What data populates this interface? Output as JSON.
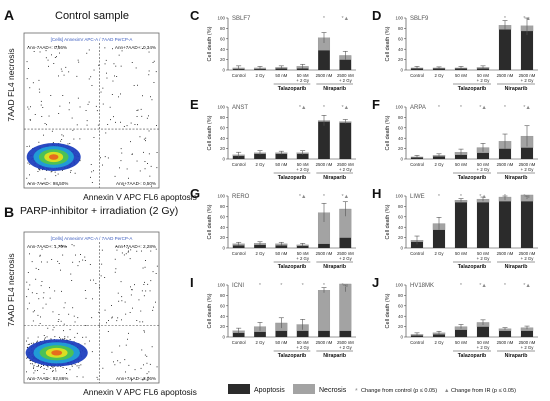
{
  "colors": {
    "apoptosis": "#2b2b2b",
    "necrosis": "#a3a3a3",
    "axis": "#333333",
    "flow_gate": "#3a5bbf",
    "marker": "#8a8a8a"
  },
  "flow_panels": [
    {
      "letter": "A",
      "title": "Control sample",
      "header": "[Cells] AnnexinV APC-A / 7AAD PerCP-A",
      "ylabel": "7AAD FL4 necrosis",
      "xlabel": "Annexin V APC FL6 apoptosis",
      "quadrants": [
        "Ann-7AAD+: 0,66%",
        "Ann+7AAD+: 0,34%",
        "Ann-7AAD-: 98,50%",
        "Ann+7AAD-: 0,50%"
      ],
      "density": "control"
    },
    {
      "letter": "B",
      "title": "PARP-inhibitor + irradiation (2 Gy)",
      "header": "[Cells] AnnexinV APC-A / 7AAD PerCP-A",
      "ylabel": "7AAD FL4 necrosis",
      "xlabel": "Annexin V APC FL6 apoptosis",
      "quadrants": [
        "Ann-7AAD+: 1,79%",
        "Ann+7AAD+: 2,28%",
        "Ann-7AAD-: 92,86%",
        "Ann+7AAD-: 3,06%"
      ],
      "density": "treated"
    }
  ],
  "chart_data": {
    "type": "bar",
    "stacked": true,
    "categories": [
      "Control",
      "2 Gy",
      "50 nM",
      "50 nM + 2 Gy",
      "2500 nM",
      "2500 nM + 2 Gy"
    ],
    "category_lines": [
      [
        "Control"
      ],
      [
        "2 Gy"
      ],
      [
        "50 nM"
      ],
      [
        "50 nM",
        "+ 2 Gy"
      ],
      [
        "2500 nM"
      ],
      [
        "2500 nM",
        "+ 2 Gy"
      ]
    ],
    "groups": [
      {
        "label": "Talazoparib",
        "from": 2,
        "to": 3
      },
      {
        "label": "Niraparib",
        "from": 4,
        "to": 5
      }
    ],
    "ylabel": "Cell death (%)",
    "ylim": [
      0,
      100
    ],
    "yticks": [
      0,
      20,
      40,
      60,
      80,
      100
    ],
    "legend": {
      "apoptosis": "Apoptosis",
      "necrosis": "Necrosis",
      "star_note": "Change from control (p ≤ 0.05)",
      "tri_note": "Change from IR (p ≤ 0.05)"
    },
    "panels": [
      {
        "letter": "C",
        "name": "SBLF7",
        "apoptosis": [
          2,
          2,
          3,
          3,
          38,
          20
        ],
        "necrosis": [
          2,
          2,
          2,
          4,
          24,
          8
        ],
        "error": [
          4,
          3,
          3,
          4,
          10,
          8
        ],
        "marks": [
          "",
          "",
          "",
          "",
          "*",
          "*▲"
        ]
      },
      {
        "letter": "D",
        "name": "SBLF9",
        "apoptosis": [
          3,
          3,
          3,
          3,
          78,
          75
        ],
        "necrosis": [
          1,
          1,
          1,
          2,
          8,
          10
        ],
        "error": [
          3,
          2,
          3,
          3,
          9,
          18
        ],
        "marks": [
          "",
          "",
          "",
          "",
          "*",
          "*▲"
        ]
      },
      {
        "letter": "E",
        "name": "ANST",
        "apoptosis": [
          6,
          10,
          10,
          10,
          72,
          70
        ],
        "necrosis": [
          2,
          2,
          2,
          2,
          2,
          2
        ],
        "error": [
          5,
          4,
          3,
          4,
          10,
          4
        ],
        "marks": [
          "",
          "",
          "",
          "*▲",
          "*",
          "*▲"
        ]
      },
      {
        "letter": "F",
        "name": "ARPA",
        "apoptosis": [
          3,
          5,
          8,
          12,
          20,
          22
        ],
        "necrosis": [
          1,
          2,
          5,
          10,
          14,
          22
        ],
        "error": [
          3,
          3,
          6,
          8,
          14,
          20
        ],
        "marks": [
          "",
          "*",
          "*",
          "*▲",
          "*",
          "*▲"
        ]
      },
      {
        "letter": "G",
        "name": "RERO",
        "apoptosis": [
          5,
          6,
          5,
          4,
          8,
          20
        ],
        "necrosis": [
          3,
          3,
          3,
          2,
          60,
          55
        ],
        "error": [
          3,
          3,
          3,
          3,
          18,
          14
        ],
        "marks": [
          "",
          "",
          "",
          "*▲",
          "*",
          "*▲"
        ]
      },
      {
        "letter": "H",
        "name": "LIWE",
        "apoptosis": [
          12,
          35,
          88,
          88,
          90,
          90
        ],
        "necrosis": [
          3,
          12,
          4,
          6,
          8,
          12
        ],
        "error": [
          8,
          12,
          3,
          4,
          6,
          8
        ],
        "marks": [
          "",
          "*",
          "*",
          "*▲",
          "*",
          "*▲"
        ]
      },
      {
        "letter": "I",
        "name": "ICNI",
        "apoptosis": [
          8,
          10,
          12,
          12,
          12,
          12
        ],
        "necrosis": [
          4,
          10,
          15,
          12,
          78,
          90
        ],
        "error": [
          5,
          8,
          10,
          10,
          5,
          15
        ],
        "marks": [
          "",
          "*",
          "*",
          "*",
          "*",
          "*▲"
        ]
      },
      {
        "letter": "J",
        "name": "HV18MK",
        "apoptosis": [
          3,
          5,
          14,
          20,
          12,
          12
        ],
        "necrosis": [
          2,
          3,
          6,
          8,
          4,
          6
        ],
        "error": [
          3,
          3,
          4,
          5,
          2,
          3
        ],
        "marks": [
          "",
          "",
          "*",
          "*▲",
          "*",
          "*▲"
        ]
      }
    ]
  }
}
